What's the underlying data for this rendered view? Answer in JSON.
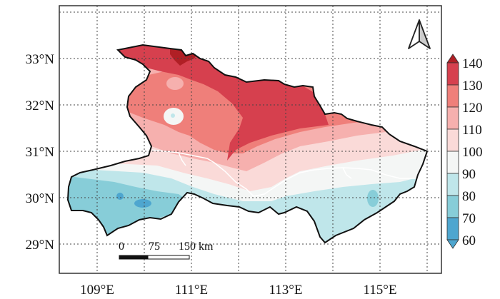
{
  "map": {
    "x_ticks": [
      "109°E",
      "111°E",
      "113°E",
      "115°E"
    ],
    "y_ticks": [
      "33°N",
      "32°N",
      "31°N",
      "30°N",
      "29°N"
    ],
    "scale_bar": {
      "labels": [
        "0",
        "75",
        "150 km"
      ]
    },
    "north_arrow": "north-arrow-icon",
    "colorbar": {
      "levels": [
        "140",
        "130",
        "120",
        "110",
        "100",
        "90",
        "80",
        "70",
        "60"
      ],
      "colors": [
        "#b01f25",
        "#d6404e",
        "#ef7f7a",
        "#f6b0ae",
        "#fadad8",
        "#f4f6f5",
        "#bfe6ea",
        "#87cdd8",
        "#4ea6cf"
      ]
    },
    "region_colors": {
      "very_high": "#b01f25",
      "high": "#d6404e",
      "mid_high": "#ef7f7a",
      "mid": "#f6b0ae",
      "low_mid": "#fadad8",
      "neutral": "#f4f6f5",
      "low": "#bfe6ea",
      "lower": "#87cdd8",
      "lowest": "#4ea6cf"
    }
  }
}
